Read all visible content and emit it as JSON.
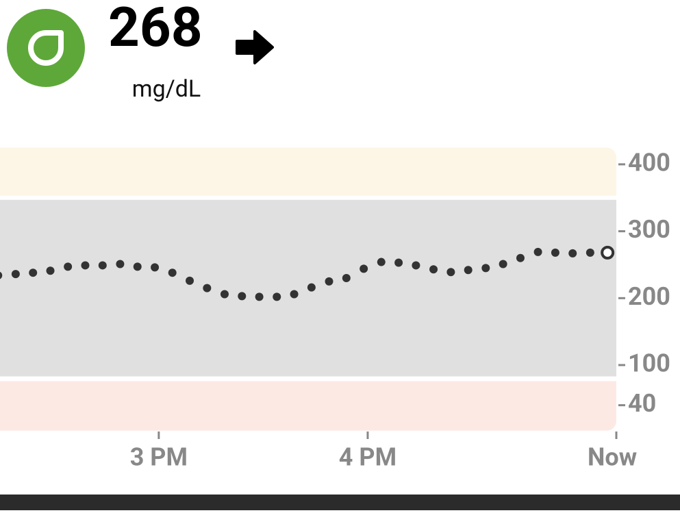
{
  "header": {
    "value": "268",
    "unit": "mg/dL"
  },
  "chart_data": {
    "type": "scatter",
    "x": [
      14.231,
      14.315,
      14.398,
      14.481,
      14.565,
      14.648,
      14.731,
      14.815,
      14.898,
      14.981,
      15.065,
      15.148,
      15.231,
      15.315,
      15.398,
      15.481,
      15.565,
      15.648,
      15.731,
      15.815,
      15.898,
      15.981,
      16.065,
      16.148,
      16.231,
      16.315,
      16.398,
      16.481,
      16.565,
      16.648,
      16.731,
      16.815,
      16.898,
      16.981,
      17.065,
      17.148
    ],
    "values": [
      234,
      236,
      238,
      241,
      247,
      249,
      249,
      251,
      247,
      246,
      238,
      226,
      215,
      206,
      203,
      202,
      202,
      206,
      216,
      225,
      230,
      244,
      254,
      253,
      249,
      243,
      239,
      242,
      245,
      251,
      260,
      269,
      268,
      267,
      268,
      268
    ],
    "color": "#333333",
    "xlim": [
      14.24,
      17.19
    ],
    "xticks": [
      {
        "value": 15,
        "label": "3 PM"
      },
      {
        "value": 16,
        "label": "4 PM"
      },
      {
        "value": 17.19,
        "label": "Now"
      }
    ],
    "ylim": [
      0,
      425
    ],
    "yticks": [
      40,
      100,
      200,
      300,
      400
    ],
    "target_range": [
      80,
      350
    ]
  }
}
